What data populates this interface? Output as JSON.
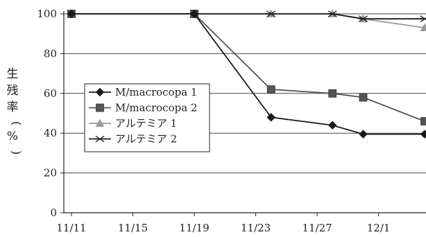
{
  "chart_data": {
    "type": "line",
    "ylabel": "生残率（%）",
    "xlim": [
      "11/11",
      "12/4"
    ],
    "ylim": [
      0,
      100
    ],
    "grid": true,
    "legend_position": "middle-left",
    "x_ticks": [
      "11/11",
      "11/15",
      "11/19",
      "11/23",
      "11/27",
      "12/1"
    ],
    "y_ticks": [
      0,
      20,
      40,
      60,
      80,
      100
    ],
    "series": [
      {
        "name": "M/macrocopa 1",
        "marker": "diamond",
        "color": "#1a1a1a",
        "points": [
          {
            "x": "11/11",
            "y": 100
          },
          {
            "x": "11/19",
            "y": 100
          },
          {
            "x": "11/24",
            "y": 48
          },
          {
            "x": "11/28",
            "y": 44
          },
          {
            "x": "11/30",
            "y": 39.5
          },
          {
            "x": "12/4",
            "y": 39.5
          }
        ]
      },
      {
        "name": "M/macrocopa 2",
        "marker": "square",
        "color": "#555555",
        "points": [
          {
            "x": "11/11",
            "y": 100
          },
          {
            "x": "11/19",
            "y": 100
          },
          {
            "x": "11/24",
            "y": 62
          },
          {
            "x": "11/28",
            "y": 60
          },
          {
            "x": "11/30",
            "y": 58
          },
          {
            "x": "12/4",
            "y": 46
          }
        ]
      },
      {
        "name": "アルテミア 1",
        "marker": "triangle",
        "color": "#9a9a9a",
        "points": [
          {
            "x": "11/11",
            "y": 100
          },
          {
            "x": "11/19",
            "y": 100
          },
          {
            "x": "11/24",
            "y": 100
          },
          {
            "x": "11/28",
            "y": 100
          },
          {
            "x": "11/30",
            "y": 97.5
          },
          {
            "x": "12/4",
            "y": 93
          }
        ]
      },
      {
        "name": "アルテミア 2",
        "marker": "star",
        "color": "#1a1a1a",
        "points": [
          {
            "x": "11/11",
            "y": 100
          },
          {
            "x": "11/19",
            "y": 100
          },
          {
            "x": "11/24",
            "y": 100
          },
          {
            "x": "11/28",
            "y": 100
          },
          {
            "x": "11/30",
            "y": 97.5
          },
          {
            "x": "12/4",
            "y": 97.5
          }
        ]
      }
    ]
  }
}
